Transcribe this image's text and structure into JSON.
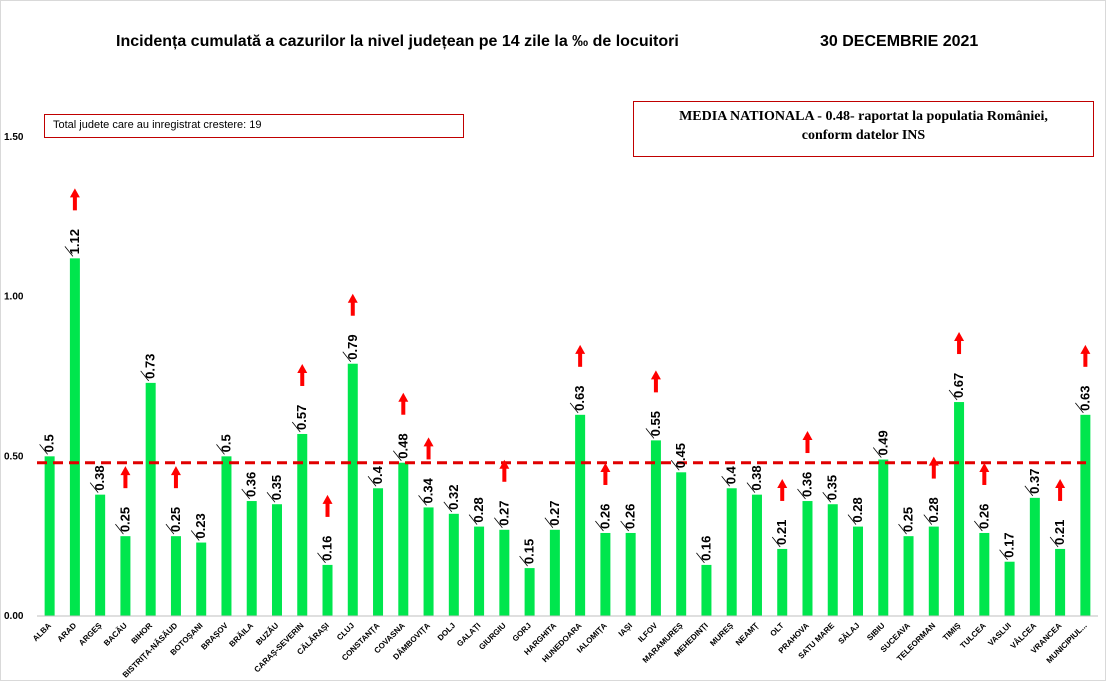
{
  "title": "Incidența cumulată a cazurilor la nivel județean pe 14 zile la ‰ de locuitori",
  "date": "30 DECEMBRIE 2021",
  "left_note": "Total judete care au inregistrat crestere: 19",
  "national_note": {
    "line1": "MEDIA NATIONALA - 0.48-  raportat la populatia României,",
    "line2": "conform datelor INS"
  },
  "colors": {
    "bar": "#00e64d",
    "reference_line": "#e00000",
    "arrow": "#ff0000",
    "box_border": "#c00000"
  },
  "chart_data": {
    "type": "bar",
    "categories": [
      "ALBA",
      "ARAD",
      "ARGEȘ",
      "BACĂU",
      "BIHOR",
      "BISTRIȚA-NĂSĂUD",
      "BOTOȘANI",
      "BRAȘOV",
      "BRĂILA",
      "BUZĂU",
      "CARAȘ-SEVERIN",
      "CĂLĂRAȘI",
      "CLUJ",
      "CONSTANȚA",
      "COVASNA",
      "DÂMBOVIȚA",
      "DOLJ",
      "GALAȚI",
      "GIURGIU",
      "GORJ",
      "HARGHITA",
      "HUNEDOARA",
      "IALOMIȚA",
      "IAȘI",
      "ILFOV",
      "MARAMUREȘ",
      "MEHEDINȚI",
      "MUREȘ",
      "NEAMȚ",
      "OLT",
      "PRAHOVA",
      "SATU MARE",
      "SĂLAJ",
      "SIBIU",
      "SUCEAVA",
      "TELEORMAN",
      "TIMIȘ",
      "TULCEA",
      "VASLUI",
      "VÂLCEA",
      "VRANCEA",
      "MUNICIPIUL..."
    ],
    "values": [
      0.5,
      1.12,
      0.38,
      0.25,
      0.73,
      0.25,
      0.23,
      0.5,
      0.36,
      0.35,
      0.57,
      0.16,
      0.79,
      0.4,
      0.48,
      0.34,
      0.32,
      0.28,
      0.27,
      0.15,
      0.27,
      0.63,
      0.26,
      0.26,
      0.55,
      0.45,
      0.16,
      0.4,
      0.38,
      0.21,
      0.36,
      0.35,
      0.28,
      0.49,
      0.25,
      0.28,
      0.67,
      0.26,
      0.17,
      0.37,
      0.21,
      0.63
    ],
    "increase": [
      false,
      true,
      false,
      true,
      false,
      true,
      false,
      false,
      false,
      false,
      true,
      true,
      true,
      false,
      true,
      true,
      false,
      false,
      true,
      false,
      false,
      true,
      true,
      false,
      true,
      false,
      false,
      false,
      false,
      true,
      true,
      false,
      false,
      false,
      false,
      true,
      true,
      true,
      false,
      false,
      true,
      true
    ],
    "reference_line": 0.48,
    "ylim": [
      0,
      1.5
    ],
    "yticks": [
      "0.00",
      "0.50",
      "1.00",
      "1.50"
    ],
    "grid": false,
    "legend": "none"
  }
}
